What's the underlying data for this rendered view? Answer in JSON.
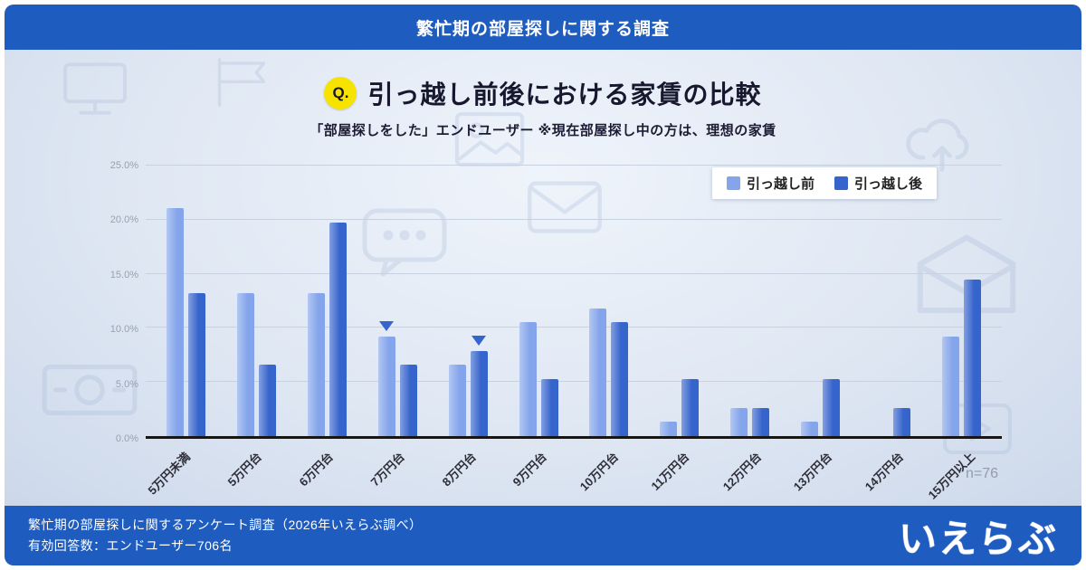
{
  "header": {
    "title": "繁忙期の部屋探しに関する調査"
  },
  "question": {
    "badge": "Q.",
    "title": "引っ越し前後における家賃の比較",
    "subtitle": "「部屋探しをした」エンドユーザー ※現在部屋探し中の方は、理想の家賃"
  },
  "chart_data": {
    "type": "bar",
    "title": "引っ越し前後における家賃の比較",
    "categories": [
      "5万円未満",
      "5万円台",
      "6万円台",
      "7万円台",
      "8万円台",
      "9万円台",
      "10万円台",
      "11万円台",
      "12万円台",
      "13万円台",
      "14万円台",
      "15万円以上"
    ],
    "series": [
      {
        "name": "引っ越し前",
        "color": "#84a5eb",
        "values": [
          21.1,
          13.2,
          13.2,
          9.2,
          6.6,
          10.5,
          11.8,
          1.3,
          2.6,
          1.3,
          0,
          9.2
        ]
      },
      {
        "name": "引っ越し後",
        "color": "#3664cd",
        "values": [
          13.2,
          6.6,
          19.7,
          6.6,
          7.9,
          5.3,
          10.5,
          5.3,
          2.6,
          5.3,
          2.6,
          14.5
        ]
      }
    ],
    "ylim": [
      0,
      25
    ],
    "yticks": [
      25,
      20,
      15,
      10,
      5,
      0
    ],
    "ytick_labels": [
      "25.0%",
      "20.0%",
      "15.0%",
      "10.0%",
      "5.0%",
      "0.0%"
    ],
    "grid": true,
    "legend_position": "top-right",
    "annotations": [
      {
        "category_index": 3,
        "series_index": 0,
        "symbol": "▼"
      },
      {
        "category_index": 4,
        "series_index": 1,
        "symbol": "▼"
      }
    ],
    "note": "n=76"
  },
  "footer": {
    "line1": "繁忙期の部屋探しに関するアンケート調査（2026年いえらぶ調べ）",
    "line2": "有効回答数：エンドユーザー706名",
    "logo": "いえらぶ"
  },
  "colors": {
    "band_blue": "#1e5cbf",
    "before_bar": "#84a5eb",
    "after_bar": "#3664cd",
    "badge_yellow": "#f7e300"
  }
}
